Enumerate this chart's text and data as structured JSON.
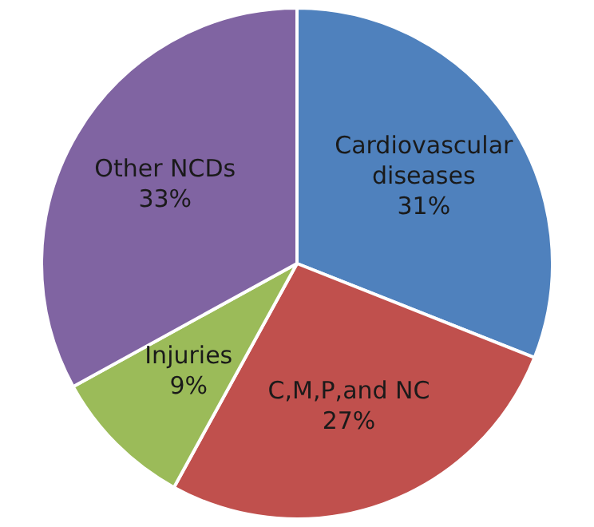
{
  "chart_data": {
    "type": "pie",
    "categories": [
      "Cardiovascular diseases",
      "C,M,P,and NC",
      "Injuries",
      "Other NCDs"
    ],
    "values": [
      31,
      27,
      9,
      33
    ],
    "colors": [
      "#4f81bd",
      "#c0504d",
      "#9bbb59",
      "#8064a2"
    ],
    "value_labels": [
      "31%",
      "27%",
      "9%",
      "33%"
    ],
    "legend": false
  }
}
